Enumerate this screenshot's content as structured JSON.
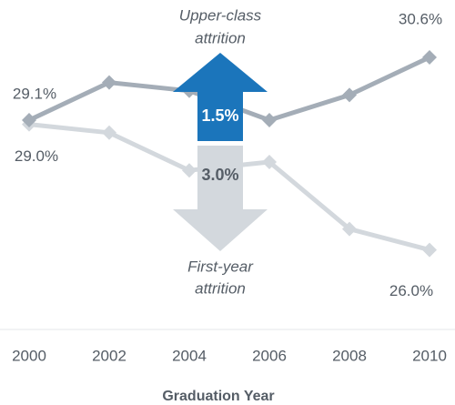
{
  "chart_data": {
    "type": "line",
    "x": [
      2000,
      2002,
      2004,
      2006,
      2008,
      2010
    ],
    "xlim": [
      2000,
      2010
    ],
    "xticks": [
      2000,
      2002,
      2004,
      2006,
      2008,
      2010
    ],
    "ylim": [
      25,
      31.5
    ],
    "x_label": "Graduation Year",
    "series": [
      {
        "name": "Upper-class attrition",
        "color": "#a4adb7",
        "values": [
          29.1,
          30.0,
          29.8,
          29.1,
          29.7,
          30.6
        ],
        "value_labels": [
          "29.1%",
          null,
          null,
          null,
          null,
          "30.6%"
        ]
      },
      {
        "name": "First-year attrition",
        "color": "#d3d8dd",
        "values": [
          29.0,
          28.8,
          27.9,
          28.1,
          26.5,
          26.0
        ],
        "value_labels": [
          "29.0%",
          null,
          null,
          null,
          null,
          "26.0%"
        ]
      }
    ],
    "annotations": [
      {
        "lines": [
          "Upper-class",
          "attrition"
        ],
        "change": "1.5%"
      },
      {
        "lines": [
          "First-year",
          "attrition"
        ],
        "change": "3.0%"
      }
    ]
  }
}
